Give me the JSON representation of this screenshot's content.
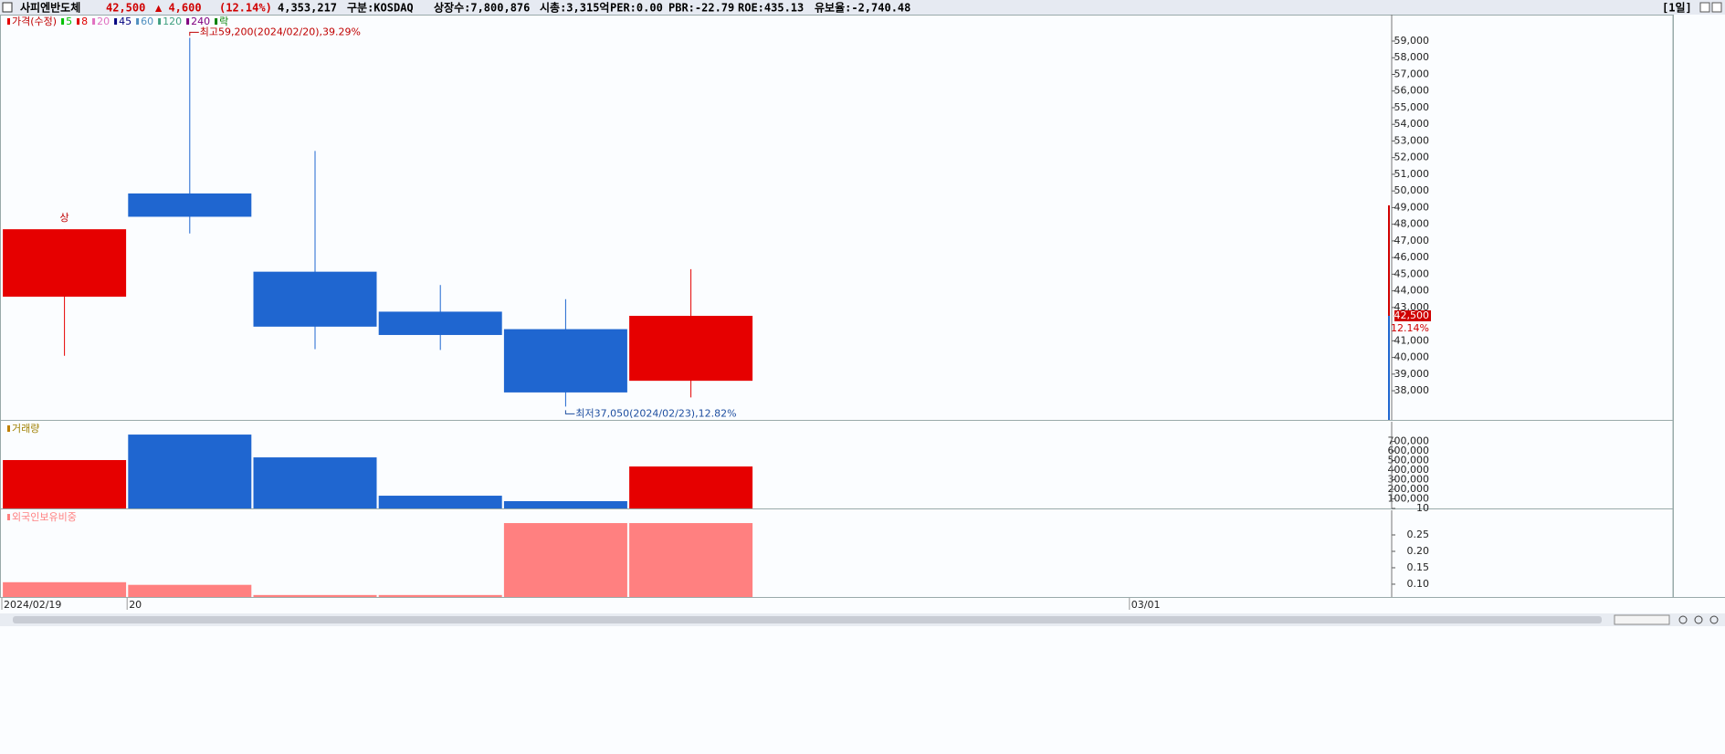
{
  "header": {
    "name": "사피엔반도체",
    "price": "42,500",
    "change": "▲ 4,600",
    "change_rate": "(12.14%)",
    "volume": "4,353,217",
    "market": "구분:KOSDAQ",
    "shares": "상장수:7,800,876",
    "cap": "시총:3,315억",
    "per": "PER:0.00",
    "pbr": "PBR:-22.79",
    "roe": "ROE:435.13",
    "reserve": "유보율:-2,740.48",
    "period": "[1일]"
  },
  "chart_data": [
    {
      "type": "candlestick",
      "legend": [
        {
          "name": "가격(수정)",
          "color": "#e60000"
        },
        {
          "name": "5",
          "color": "#00c000"
        },
        {
          "name": "8",
          "color": "#e00000"
        },
        {
          "name": "20",
          "color": "#e070c0"
        },
        {
          "name": "45",
          "color": "#000080"
        },
        {
          "name": "60",
          "color": "#5090c0"
        },
        {
          "name": "120",
          "color": "#40a080"
        },
        {
          "name": "240",
          "color": "#800080"
        },
        {
          "name": "락",
          "color": "#008000"
        }
      ],
      "categories": [
        "2024/02/19",
        "20",
        null,
        null,
        null,
        null,
        null,
        null,
        null,
        "03/01",
        null
      ],
      "open": [
        43650,
        49850,
        45150,
        42750,
        41700,
        38600,
        null,
        null,
        null,
        null,
        null
      ],
      "high": [
        47700,
        59200,
        52400,
        44350,
        43500,
        45300,
        null,
        null,
        null,
        null,
        null
      ],
      "low": [
        40100,
        47450,
        40500,
        40450,
        37050,
        37600,
        null,
        null,
        null,
        null,
        null
      ],
      "close": [
        47700,
        48450,
        41850,
        41350,
        37900,
        42500,
        null,
        null,
        null,
        null,
        null
      ],
      "up_color": "#e60000",
      "down_color": "#1f66d0",
      "ylim": [
        36250,
        60590
      ],
      "yticks": [
        {
          "value": 38000,
          "label": "38,000"
        },
        {
          "value": 39000,
          "label": "39,000"
        },
        {
          "value": 40000,
          "label": "40,000"
        },
        {
          "value": 41000,
          "label": "41,000"
        },
        {
          "value": 43000,
          "label": "43,000"
        },
        {
          "value": 44000,
          "label": "44,000"
        },
        {
          "value": 45000,
          "label": "45,000"
        },
        {
          "value": 46000,
          "label": "46,000"
        },
        {
          "value": 47000,
          "label": "47,000"
        },
        {
          "value": 48000,
          "label": "48,000"
        },
        {
          "value": 49000,
          "label": "49,000"
        },
        {
          "value": 50000,
          "label": "50,000"
        },
        {
          "value": 51000,
          "label": "51,000"
        },
        {
          "value": 52000,
          "label": "52,000"
        },
        {
          "value": 53000,
          "label": "53,000"
        },
        {
          "value": 54000,
          "label": "54,000"
        },
        {
          "value": 55000,
          "label": "55,000"
        },
        {
          "value": 56000,
          "label": "56,000"
        },
        {
          "value": 57000,
          "label": "57,000"
        },
        {
          "value": 58000,
          "label": "58,000"
        },
        {
          "value": 59000,
          "label": "59,000"
        }
      ],
      "high_note": "최고59,200(2024/02/20),39.29%",
      "low_note": "최저37,050(2024/02/23),12.82%",
      "limit_mark": "상",
      "last": {
        "value": 42500,
        "label": "42,500"
      },
      "last_rate": "12.14%"
    },
    {
      "type": "bar",
      "title": "거래량",
      "values": [
        505000,
        771000,
        533000,
        133000,
        76000,
        438000,
        null,
        null,
        null,
        null,
        null
      ],
      "ylim": [
        0,
        905000
      ],
      "yticks": [
        10,
        {
          "value": 100000,
          "label": "100,000"
        },
        {
          "value": 200000,
          "label": "200,000"
        },
        {
          "value": 300000,
          "label": "300,000"
        },
        {
          "value": 400000,
          "label": "400,000"
        },
        {
          "value": 500000,
          "label": "500,000"
        },
        {
          "value": 600000,
          "label": "600,000"
        },
        {
          "value": 700000,
          "label": "700,000"
        }
      ]
    },
    {
      "type": "bar",
      "title": "외국인보유비중",
      "color": "#ff8080",
      "values": [
        0.106,
        0.098,
        0.067,
        0.067,
        0.286,
        0.286,
        null,
        null,
        null,
        null,
        null
      ],
      "ylim": [
        0.061,
        0.325
      ],
      "yticks": [
        {
          "value": 0.1,
          "label": "0.10"
        },
        0.15,
        {
          "value": 0.2,
          "label": "0.20"
        },
        0.25
      ]
    }
  ]
}
